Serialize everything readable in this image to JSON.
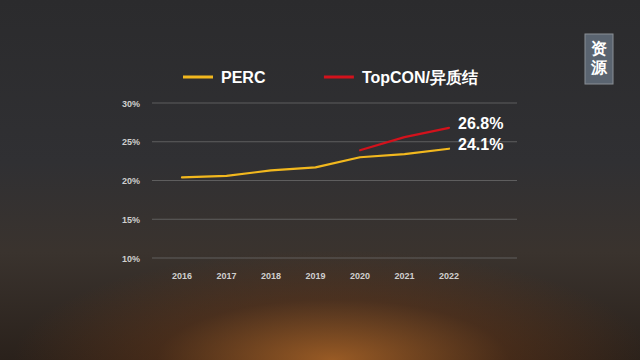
{
  "chart_data": {
    "type": "line",
    "watermark": "资源",
    "categories": [
      "2016",
      "2017",
      "2018",
      "2019",
      "2020",
      "2021",
      "2022"
    ],
    "series": [
      {
        "name": "PERC",
        "color": "#f2b81e",
        "values": [
          20.4,
          20.6,
          21.3,
          21.7,
          23.0,
          23.4,
          24.1
        ],
        "value_labels": [
          null,
          null,
          null,
          null,
          null,
          null,
          "24.1%"
        ]
      },
      {
        "name": "TopCON/异质结",
        "color": "#d3121c",
        "values": [
          null,
          null,
          null,
          null,
          23.9,
          25.6,
          26.8
        ],
        "value_labels": [
          null,
          null,
          null,
          null,
          null,
          null,
          "26.8%"
        ]
      }
    ],
    "ylim": [
      10,
      30
    ],
    "yticks": [
      {
        "value": 10,
        "label": "10%"
      },
      {
        "value": 15,
        "label": "15%"
      },
      {
        "value": 20,
        "label": "20%"
      },
      {
        "value": 25,
        "label": "25%"
      },
      {
        "value": 30,
        "label": "30%"
      }
    ],
    "grid": true,
    "legend": "top",
    "data_labels": true
  }
}
